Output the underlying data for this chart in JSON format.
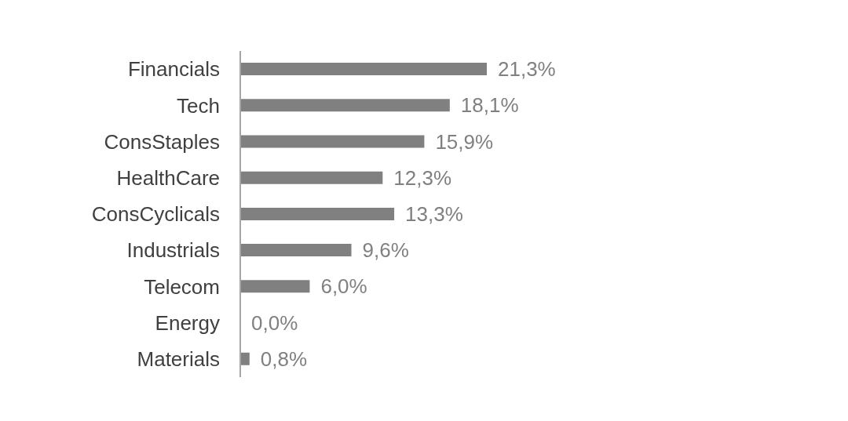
{
  "chart_data": {
    "type": "bar",
    "orientation": "horizontal",
    "categories": [
      "Financials",
      "Tech",
      "ConsStaples",
      "HealthCare",
      "ConsCyclicals",
      "Industrials",
      "Telecom",
      "Energy",
      "Materials"
    ],
    "values": [
      21.3,
      18.1,
      15.9,
      12.3,
      13.3,
      9.6,
      6.0,
      0.0,
      0.8
    ],
    "value_labels": [
      "21,3%",
      "18,1%",
      "15,9%",
      "12,3%",
      "13,3%",
      "9,6%",
      "6,0%",
      "0,0%",
      "0,8%"
    ],
    "color": "#808080",
    "grid": false,
    "legend": false
  }
}
